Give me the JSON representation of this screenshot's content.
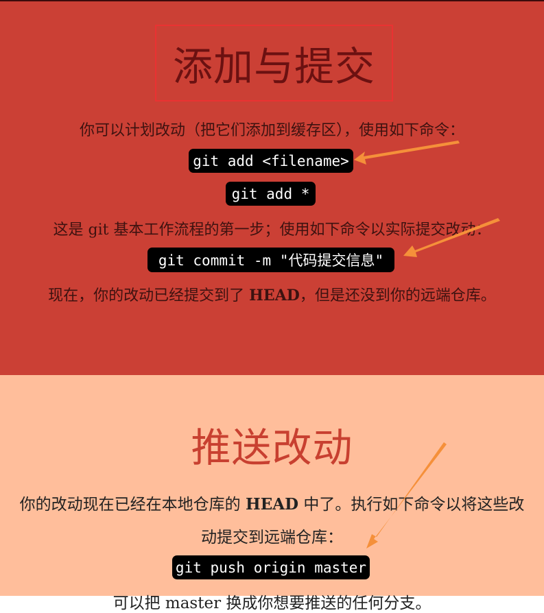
{
  "add_section": {
    "title": "添加与提交",
    "intro": "你可以计划改动（把它们添加到缓存区），使用如下命令：",
    "cmd_add_file": "git add <filename>",
    "cmd_add_all": "git add *",
    "step_text": "这是 git 基本工作流程的第一步；使用如下命令以实际提交改动：",
    "cmd_commit": "git commit -m \"代码提交信息\"",
    "result_pre": "现在，你的改动已经提交到了 ",
    "result_bold": "HEAD",
    "result_post": "，但是还没到你的远端仓库。"
  },
  "push_section": {
    "title": "推送改动",
    "text_line1_pre": "你的改动现在已经在本地仓库的 ",
    "text_line1_bold": "HEAD",
    "text_line1_post": " 中了。执行如下命令以将这些改",
    "text_line2": "动提交到远端仓库：",
    "cmd_push": "git push origin master",
    "partial_line": "可以把 master 换成你想要推送的任何分支。"
  },
  "colors": {
    "add_bg": "#cb4035",
    "push_bg": "#ffbe9b",
    "arrow": "#f5903a",
    "title_border": "#ea3232"
  }
}
